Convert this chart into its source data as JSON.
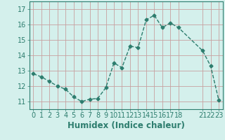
{
  "x": [
    0,
    1,
    2,
    3,
    4,
    5,
    6,
    7,
    8,
    9,
    10,
    11,
    12,
    13,
    14,
    15,
    16,
    17,
    18,
    21,
    22,
    23
  ],
  "y": [
    12.8,
    12.6,
    12.3,
    12.0,
    11.8,
    11.3,
    11.0,
    11.15,
    11.2,
    11.9,
    13.5,
    13.2,
    14.6,
    14.5,
    16.3,
    16.6,
    15.8,
    16.1,
    15.8,
    14.3,
    13.3,
    11.1
  ],
  "line_color": "#2d7d6e",
  "marker": "D",
  "marker_size": 2.5,
  "bg_color": "#d4f0ec",
  "grid_color": "#c8a0a0",
  "xlabel": "Humidex (Indice chaleur)",
  "xlim": [
    -0.5,
    23.5
  ],
  "ylim": [
    10.5,
    17.5
  ],
  "xticks": [
    0,
    1,
    2,
    3,
    4,
    5,
    6,
    7,
    8,
    9,
    10,
    11,
    12,
    13,
    14,
    15,
    16,
    17,
    18,
    21,
    22,
    23
  ],
  "yticks": [
    11,
    12,
    13,
    14,
    15,
    16,
    17
  ],
  "xlabel_fontsize": 8.5,
  "tick_fontsize": 7,
  "line_width": 1.0,
  "tick_color": "#2d7d6e",
  "label_color": "#2d7d6e",
  "spine_color": "#2d7d6e"
}
